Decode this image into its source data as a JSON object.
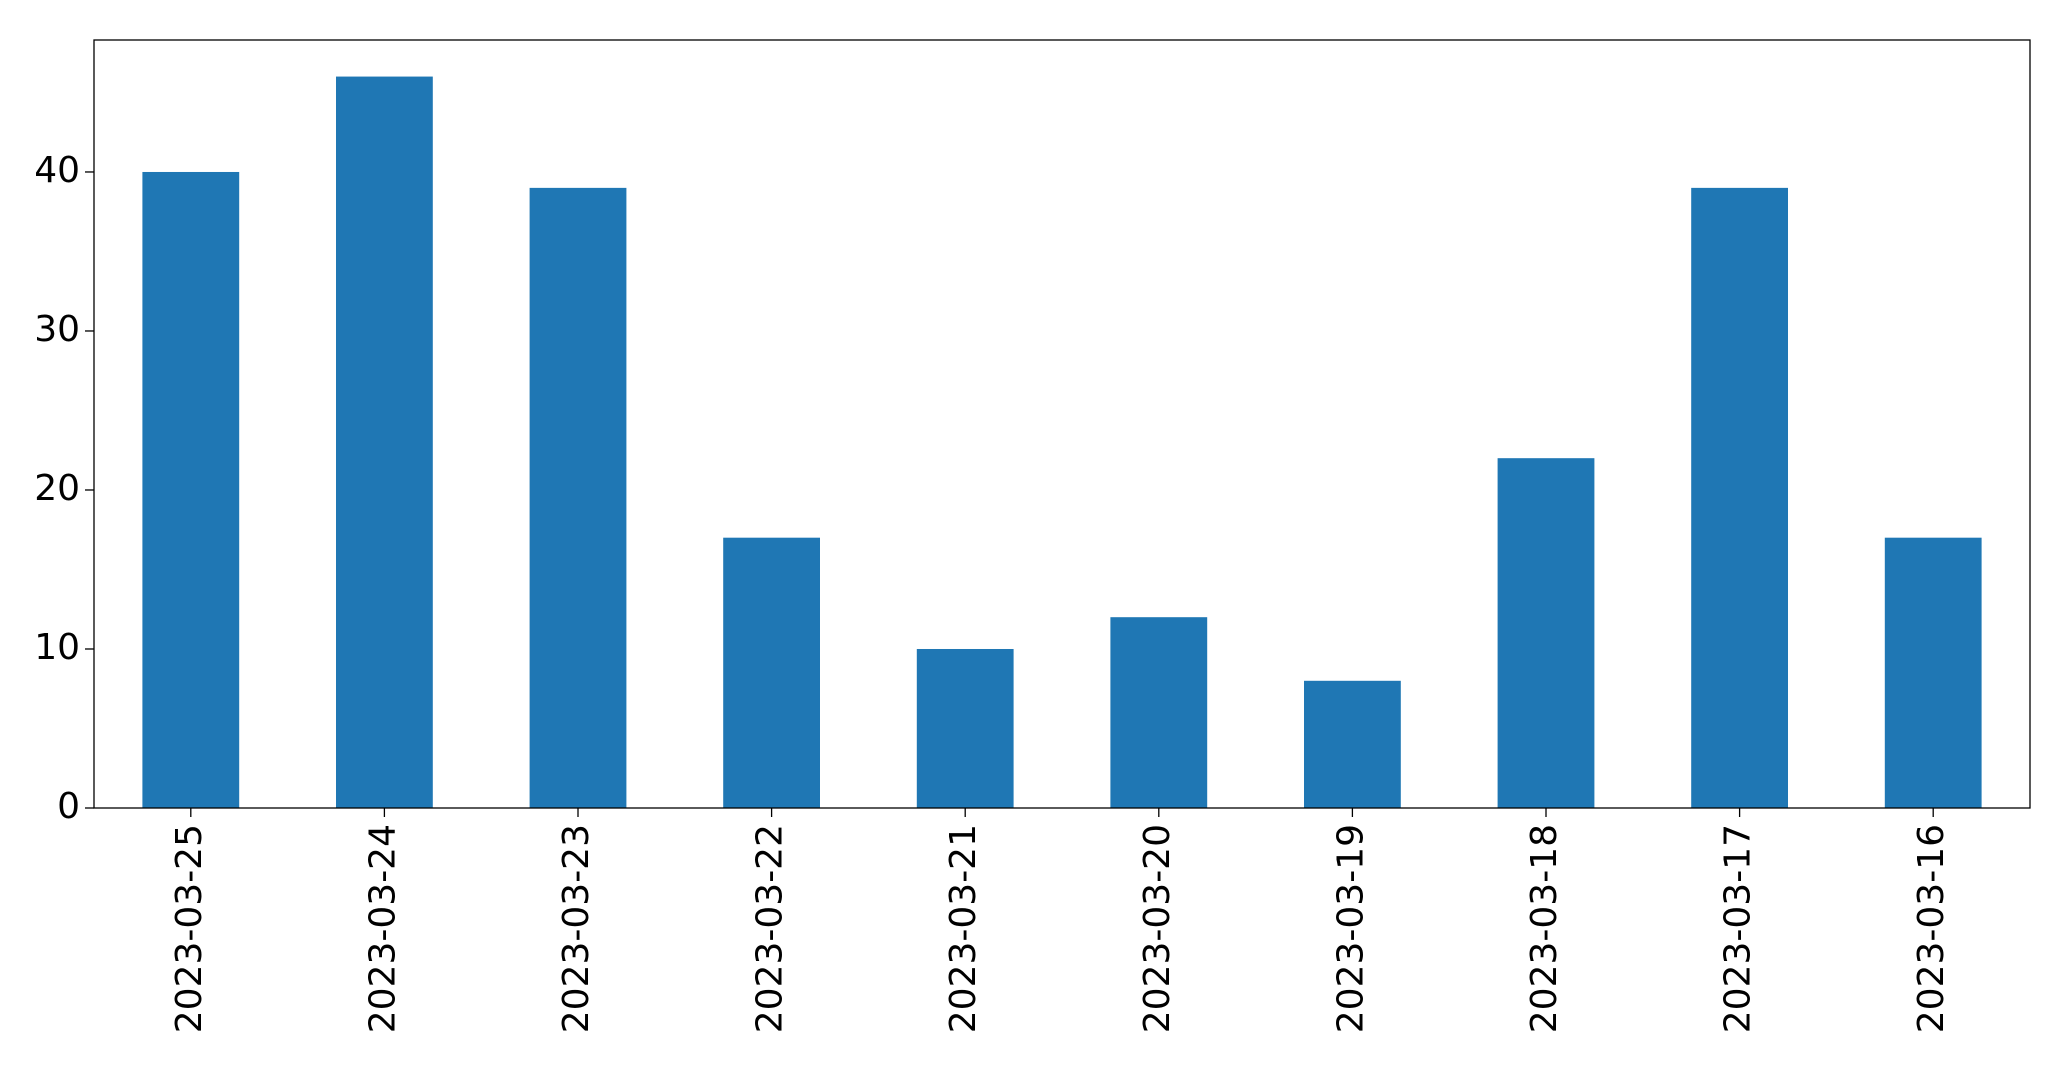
{
  "chart_data": {
    "type": "bar",
    "categories": [
      "2023-03-25",
      "2023-03-24",
      "2023-03-23",
      "2023-03-22",
      "2023-03-21",
      "2023-03-20",
      "2023-03-19",
      "2023-03-18",
      "2023-03-17",
      "2023-03-16"
    ],
    "values": [
      40,
      46,
      39,
      17,
      10,
      12,
      8,
      22,
      39,
      17
    ],
    "color": "#1f77b4",
    "ylim": [
      0,
      48.3
    ],
    "yticks": [
      0,
      10,
      20,
      30,
      40
    ],
    "grid": false
  }
}
